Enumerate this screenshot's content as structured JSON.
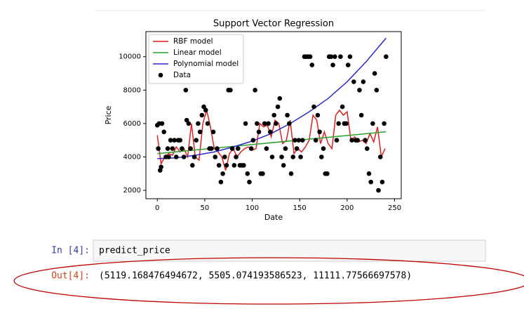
{
  "chart_data": {
    "type": "line",
    "title": "Support Vector Regression",
    "xlabel": "Date",
    "ylabel": "Price",
    "xlim": [
      -12,
      257
    ],
    "ylim": [
      1500,
      11500
    ],
    "xticks": [
      0,
      50,
      100,
      150,
      200,
      250
    ],
    "yticks": [
      2000,
      4000,
      6000,
      8000,
      10000
    ],
    "legend": "upper left",
    "series": [
      {
        "name": "RBF model",
        "type": "line",
        "color": "#e02020",
        "x": [
          0,
          4,
          8,
          12,
          16,
          20,
          24,
          28,
          32,
          36,
          40,
          44,
          48,
          52,
          56,
          60,
          64,
          68,
          72,
          76,
          80,
          84,
          88,
          92,
          96,
          100,
          104,
          108,
          112,
          116,
          120,
          124,
          128,
          132,
          136,
          140,
          144,
          148,
          152,
          156,
          160,
          164,
          168,
          172,
          176,
          180,
          184,
          188,
          192,
          196,
          200,
          204,
          208,
          212,
          216,
          220,
          224,
          228,
          232,
          236,
          240
        ],
        "values": [
          5300,
          3600,
          4000,
          4200,
          4100,
          4600,
          4300,
          4500,
          4000,
          6000,
          4000,
          3800,
          6000,
          6800,
          5800,
          4500,
          4300,
          4000,
          3200,
          4200,
          4500,
          4000,
          4300,
          4500,
          4600,
          4400,
          4500,
          6000,
          5800,
          5900,
          5200,
          6200,
          6000,
          4800,
          5000,
          6200,
          4200,
          4500,
          4300,
          4600,
          5000,
          6500,
          6200,
          4800,
          5500,
          4800,
          4500,
          6500,
          6800,
          6500,
          6700,
          5000,
          5200,
          4900,
          5000,
          4800,
          5400,
          4900,
          5800,
          4000,
          4500
        ]
      },
      {
        "name": "Linear model",
        "type": "line",
        "color": "#2ca02c",
        "x": [
          0,
          241
        ],
        "values": [
          4200,
          5505
        ]
      },
      {
        "name": "Polynomial model",
        "type": "line",
        "color": "#2a2ad0",
        "x": [
          0,
          20,
          40,
          60,
          80,
          100,
          120,
          140,
          160,
          180,
          200,
          220,
          241
        ],
        "values": [
          3900,
          3950,
          4100,
          4300,
          4600,
          4950,
          5400,
          6000,
          6700,
          7500,
          8500,
          9700,
          11111
        ]
      },
      {
        "name": "Data",
        "type": "scatter",
        "color": "#000000",
        "x": [
          0,
          1,
          2,
          3,
          4,
          5,
          7,
          9,
          11,
          12,
          14,
          16,
          18,
          20,
          22,
          24,
          26,
          28,
          30,
          31,
          33,
          35,
          37,
          39,
          41,
          43,
          45,
          47,
          49,
          51,
          53,
          55,
          57,
          59,
          61,
          63,
          65,
          67,
          69,
          71,
          73,
          75,
          77,
          79,
          81,
          83,
          85,
          87,
          89,
          91,
          93,
          95,
          97,
          99,
          101,
          103,
          105,
          107,
          109,
          111,
          113,
          115,
          117,
          119,
          121,
          123,
          125,
          127,
          129,
          131,
          133,
          135,
          137,
          139,
          141,
          143,
          145,
          147,
          149,
          151,
          153,
          155,
          157,
          159,
          161,
          163,
          165,
          167,
          169,
          171,
          173,
          175,
          177,
          179,
          181,
          183,
          185,
          187,
          189,
          191,
          193,
          195,
          197,
          199,
          201,
          203,
          205,
          207,
          209,
          211,
          213,
          215,
          217,
          219,
          221,
          223,
          225,
          227,
          229,
          231,
          233,
          235,
          237,
          239,
          241
        ],
        "values": [
          5900,
          4500,
          6000,
          3200,
          3400,
          6000,
          5500,
          4000,
          4500,
          4000,
          5000,
          4500,
          5000,
          4000,
          5000,
          5000,
          4500,
          4000,
          8000,
          6200,
          6000,
          4500,
          3500,
          4000,
          5000,
          6000,
          5500,
          6500,
          7000,
          6800,
          6000,
          4500,
          4500,
          5500,
          4000,
          4500,
          3500,
          2500,
          3000,
          4000,
          3500,
          8000,
          8000,
          4500,
          3500,
          4000,
          4500,
          3500,
          3500,
          3500,
          6000,
          3000,
          2500,
          4500,
          5000,
          8000,
          6000,
          5500,
          3000,
          3000,
          6000,
          4500,
          6000,
          5500,
          4000,
          6500,
          6000,
          7000,
          7500,
          4000,
          3500,
          4500,
          6500,
          6000,
          3000,
          4000,
          5000,
          4500,
          5000,
          4000,
          5000,
          10000,
          10000,
          10000,
          10000,
          9500,
          7000,
          5000,
          6500,
          5500,
          4000,
          4500,
          3000,
          3000,
          10000,
          10000,
          9500,
          10000,
          5000,
          6000,
          10000,
          7000,
          6000,
          6000,
          9500,
          10000,
          5000,
          8500,
          5000,
          5000,
          8000,
          6500,
          8500,
          5000,
          4500,
          3000,
          2500,
          6000,
          9000,
          8000,
          2000,
          4000,
          2500,
          6000,
          10000
        ]
      }
    ]
  },
  "cells": [
    {
      "prompt": "In [4]:",
      "code": "predict_price"
    },
    {
      "prompt": "Out[4]:",
      "output": "(5119.168476494672, 5505.074193586523, 11111.77566697578)"
    }
  ]
}
